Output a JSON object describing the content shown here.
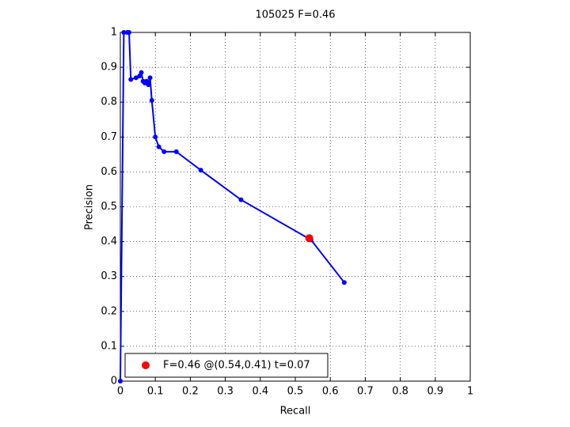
{
  "chart_data": {
    "type": "line",
    "title": "105025 F=0.46",
    "x_label": "Recall",
    "y_label": "Precision",
    "xlim": [
      0,
      1
    ],
    "ylim": [
      0,
      1
    ],
    "xticks": [
      0,
      0.1,
      0.2,
      0.3,
      0.4,
      0.5,
      0.6,
      0.7,
      0.8,
      0.9,
      1
    ],
    "yticks": [
      0,
      0.1,
      0.2,
      0.3,
      0.4,
      0.5,
      0.6,
      0.7,
      0.8,
      0.9,
      1
    ],
    "grid": true,
    "series": [
      {
        "color": "#0000ff",
        "x": [
          0,
          0.01,
          0.02,
          0.025,
          0.03,
          0.045,
          0.055,
          0.06,
          0.065,
          0.07,
          0.075,
          0.08,
          0.085,
          0.09,
          0.1,
          0.11,
          0.125,
          0.16,
          0.23,
          0.345,
          0.545,
          0.64
        ],
        "values": [
          0,
          1,
          1,
          1,
          0.865,
          0.87,
          0.875,
          0.885,
          0.86,
          0.855,
          0.86,
          0.85,
          0.87,
          0.805,
          0.7,
          0.672,
          0.658,
          0.658,
          0.605,
          0.52,
          0.405,
          0.283
        ]
      }
    ],
    "highlight": {
      "name": "F=0.46 @(0.54,0.41) t=0.07",
      "color": "#ff0000",
      "x": 0.54,
      "y": 0.41
    },
    "legend": "lower left"
  }
}
